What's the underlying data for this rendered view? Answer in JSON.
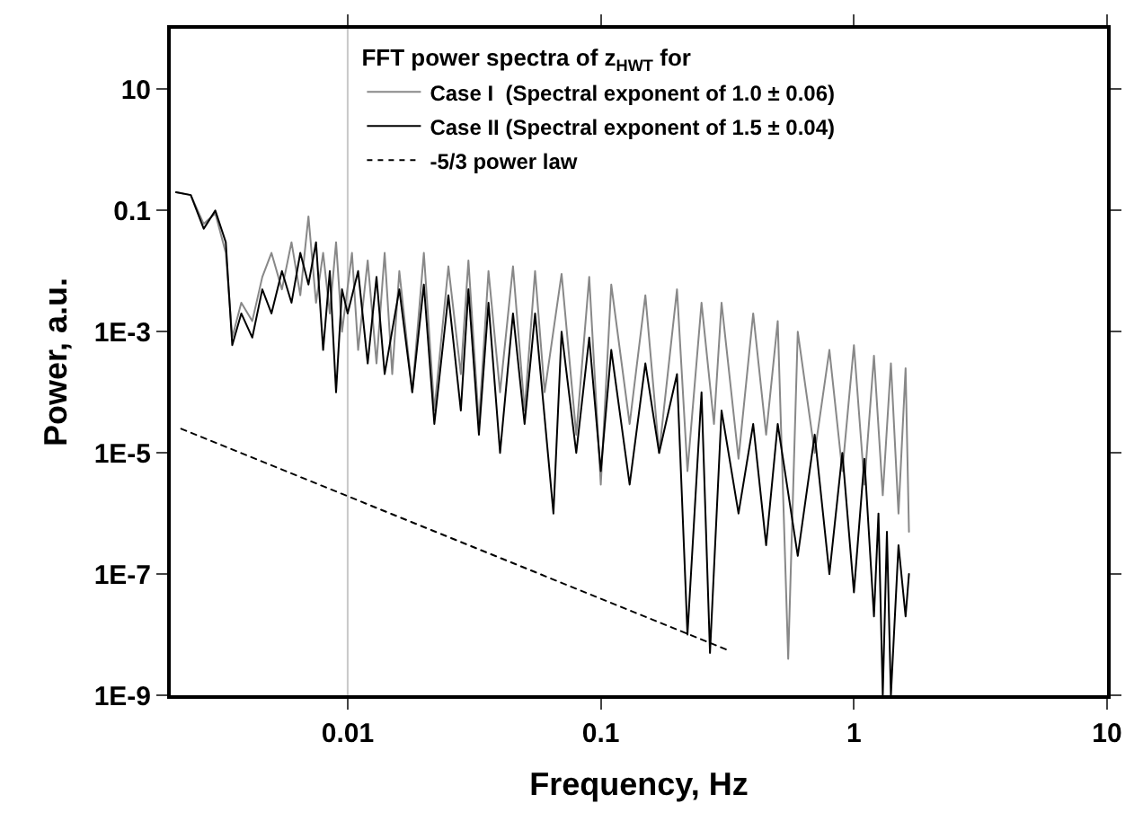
{
  "chart_data": {
    "type": "line",
    "xlabel": "Frequency, Hz",
    "ylabel": "Power, a.u.",
    "log": "xy",
    "grid": false,
    "legend": "top",
    "legend_title": "FFT power spectra of z$_{HWT}$ for",
    "xlim": [
      0.002,
      10
    ],
    "xticks": [
      0.01,
      0.1,
      1,
      10
    ],
    "ylim": [
      1e-09,
      100
    ],
    "yticks": [
      {
        "value": 1e-09,
        "label": "1E-9"
      },
      {
        "value": 1e-07,
        "label": "1E-7"
      },
      {
        "value": 1e-05,
        "label": "1E-5"
      },
      {
        "value": 0.001,
        "label": "1E-3"
      },
      0.1,
      10
    ],
    "ref_lines": [
      {
        "axis": "x",
        "value": 0.01,
        "label": null,
        "color": "#c8c8c8"
      }
    ],
    "series": [
      {
        "name": "Case I  (Spectral exponent of 1.0 ± 0.06)",
        "color": "#888888",
        "x": [
          0.0021,
          0.0024,
          0.0027,
          0.003,
          0.0033,
          0.0035,
          0.0038,
          0.0042,
          0.0046,
          0.005,
          0.0055,
          0.006,
          0.0065,
          0.007,
          0.0075,
          0.008,
          0.0085,
          0.009,
          0.0095,
          0.0104,
          0.011,
          0.012,
          0.013,
          0.014,
          0.015,
          0.016,
          0.018,
          0.02,
          0.022,
          0.025,
          0.028,
          0.03,
          0.033,
          0.036,
          0.04,
          0.045,
          0.05,
          0.055,
          0.06,
          0.07,
          0.08,
          0.09,
          0.1,
          0.11,
          0.13,
          0.15,
          0.17,
          0.2,
          0.22,
          0.25,
          0.28,
          0.3,
          0.35,
          0.4,
          0.45,
          0.5,
          0.55,
          0.6,
          0.7,
          0.8,
          0.9,
          1.0,
          1.1,
          1.2,
          1.3,
          1.4,
          1.5,
          1.6,
          1.65
        ],
        "values": [
          0.2,
          0.18,
          0.06,
          0.09,
          0.02,
          0.0008,
          0.003,
          0.0015,
          0.008,
          0.02,
          0.005,
          0.03,
          0.004,
          0.08,
          0.003,
          0.02,
          0.002,
          0.03,
          0.001,
          0.02,
          0.0005,
          0.015,
          0.0003,
          0.02,
          0.0002,
          0.01,
          0.0001,
          0.02,
          5e-05,
          0.012,
          0.0002,
          0.015,
          3e-05,
          0.01,
          0.0001,
          0.012,
          5e-05,
          0.01,
          0.0001,
          0.009,
          2e-05,
          0.008,
          3e-06,
          0.006,
          3e-05,
          0.004,
          1e-05,
          0.005,
          5e-06,
          0.003,
          3e-05,
          0.003,
          8e-06,
          0.002,
          2e-05,
          0.0015,
          4e-09,
          0.001,
          1e-05,
          0.0005,
          5e-06,
          0.0006,
          3e-06,
          0.0004,
          2e-06,
          0.0003,
          1e-06,
          0.00025,
          5e-07
        ]
      },
      {
        "name": "Case II (Spectral exponent of 1.5 ± 0.04)",
        "color": "#000000",
        "x": [
          0.0021,
          0.0024,
          0.0027,
          0.003,
          0.0033,
          0.0035,
          0.0038,
          0.0042,
          0.0046,
          0.005,
          0.0055,
          0.006,
          0.0065,
          0.007,
          0.0075,
          0.008,
          0.0085,
          0.009,
          0.0095,
          0.01,
          0.011,
          0.012,
          0.013,
          0.014,
          0.016,
          0.018,
          0.02,
          0.022,
          0.025,
          0.028,
          0.03,
          0.033,
          0.036,
          0.04,
          0.045,
          0.05,
          0.055,
          0.065,
          0.07,
          0.08,
          0.09,
          0.1,
          0.11,
          0.13,
          0.15,
          0.17,
          0.2,
          0.22,
          0.25,
          0.27,
          0.3,
          0.35,
          0.4,
          0.45,
          0.5,
          0.6,
          0.7,
          0.8,
          0.9,
          1.0,
          1.1,
          1.2,
          1.25,
          1.3,
          1.35,
          1.4,
          1.5,
          1.6,
          1.65
        ],
        "values": [
          0.2,
          0.18,
          0.05,
          0.1,
          0.03,
          0.0006,
          0.002,
          0.0008,
          0.005,
          0.002,
          0.01,
          0.003,
          0.02,
          0.006,
          0.03,
          0.0005,
          0.01,
          0.0001,
          0.005,
          0.002,
          0.01,
          0.0003,
          0.008,
          0.0002,
          0.005,
          0.0001,
          0.006,
          3e-05,
          0.004,
          5e-05,
          0.005,
          2e-05,
          0.003,
          1e-05,
          0.002,
          3e-05,
          0.002,
          1e-06,
          0.001,
          1e-05,
          0.0008,
          5e-06,
          0.0005,
          3e-06,
          0.0003,
          1e-05,
          0.0002,
          1e-08,
          0.0001,
          5e-09,
          5e-05,
          1e-06,
          3e-05,
          3e-07,
          3e-05,
          2e-07,
          2e-05,
          1e-07,
          1e-05,
          5e-08,
          8e-06,
          2e-08,
          1e-06,
          1e-09,
          5e-07,
          1e-09,
          3e-07,
          2e-08,
          1e-07
        ]
      },
      {
        "name": "-5/3 power law",
        "color": "#000000",
        "line_style": "dotted",
        "x": [
          0.0022,
          0.316
        ],
        "values": [
          2.5e-05,
          5.6e-09
        ]
      }
    ]
  }
}
